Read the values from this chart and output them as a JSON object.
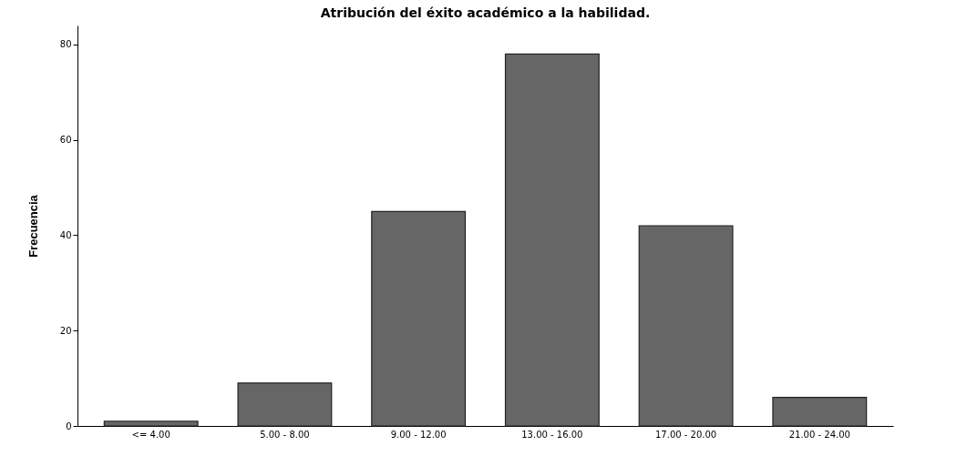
{
  "chart_data": {
    "type": "bar",
    "title": "Atribución del éxito académico a la habilidad.",
    "ylabel": "Frecuencia",
    "categories": [
      "<= 4.00",
      "5.00 - 8.00",
      "9.00 - 12.00",
      "13.00 - 16.00",
      "17.00 - 20.00",
      "21.00 - 24.00"
    ],
    "values": [
      1,
      9,
      45,
      78,
      42,
      6
    ],
    "color": "#666666",
    "ylim": [
      0,
      84
    ],
    "yticks": [
      0,
      20,
      40,
      60,
      80
    ],
    "grid": false
  }
}
